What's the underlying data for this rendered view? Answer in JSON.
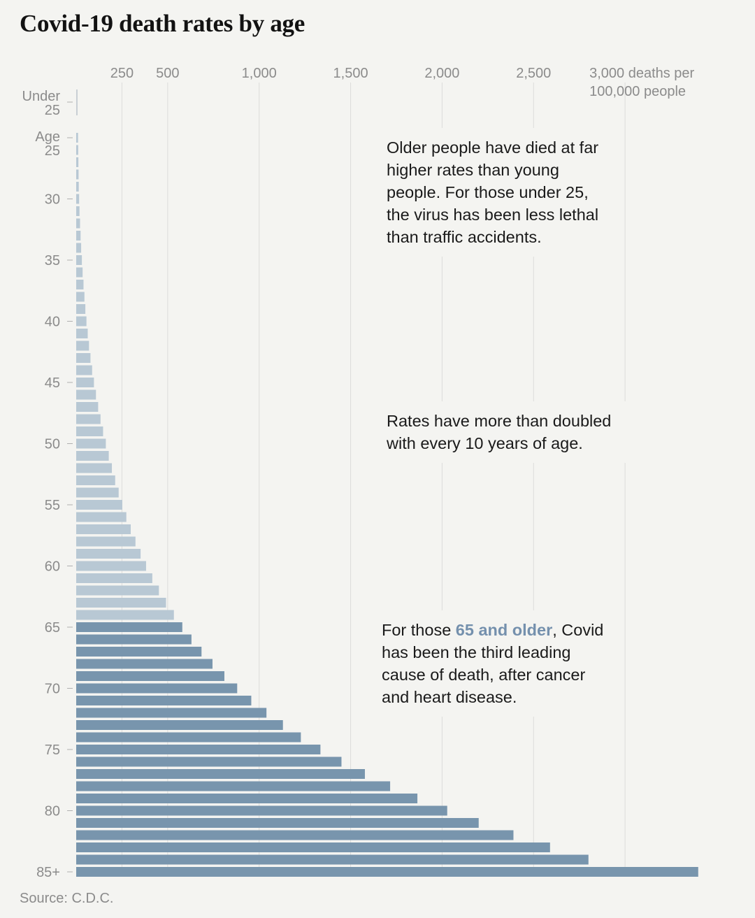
{
  "title": "Covid-19 death rates by age",
  "source": "Source: C.D.C.",
  "annotations": {
    "first": "Older people have died at far higher rates than young people. For those under 25, the virus has been less lethal than traffic accidents.",
    "second": "Rates have more than doubled with every 10 years of age.",
    "third_prefix": "For those ",
    "third_highlight": "65 and older",
    "third_suffix": ", Covid has been the third leading cause of death, after cancer and heart disease."
  },
  "colors": {
    "young": "#b8c8d4",
    "old": "#7895ad",
    "highlight": "#7490ad",
    "grid": "#dcdcda",
    "text": "#8b8b8b"
  },
  "chart_data": {
    "type": "bar",
    "orientation": "horizontal",
    "title": "Covid-19 death rates by age",
    "xlabel": "deaths per 100,000 people",
    "xlim": [
      0,
      3300
    ],
    "ticks": [
      {
        "value": 250,
        "label": "250"
      },
      {
        "value": 500,
        "label": "500"
      },
      {
        "value": 1000,
        "label": "1,000"
      },
      {
        "value": 1500,
        "label": "1,500"
      },
      {
        "value": 2000,
        "label": "2,000"
      },
      {
        "value": 2500,
        "label": "2,500"
      },
      {
        "value": 3000,
        "label": "3,000 deaths per",
        "label2": "100,000 people"
      }
    ],
    "under25": {
      "label1": "Under",
      "label2": "25",
      "value": 2
    },
    "age_header": "Age",
    "categories": [
      "25",
      "26",
      "27",
      "28",
      "29",
      "30",
      "31",
      "32",
      "33",
      "34",
      "35",
      "36",
      "37",
      "38",
      "39",
      "40",
      "41",
      "42",
      "43",
      "44",
      "45",
      "46",
      "47",
      "48",
      "49",
      "50",
      "51",
      "52",
      "53",
      "54",
      "55",
      "56",
      "57",
      "58",
      "59",
      "60",
      "61",
      "62",
      "63",
      "64",
      "65",
      "66",
      "67",
      "68",
      "69",
      "70",
      "71",
      "72",
      "73",
      "74",
      "75",
      "76",
      "77",
      "78",
      "79",
      "80",
      "81",
      "82",
      "83",
      "84",
      "85+"
    ],
    "values": [
      10,
      11,
      12,
      13,
      14,
      16,
      18,
      21,
      24,
      27,
      31,
      35,
      40,
      45,
      50,
      56,
      63,
      70,
      78,
      87,
      97,
      108,
      120,
      133,
      147,
      162,
      178,
      195,
      213,
      232,
      252,
      274,
      298,
      324,
      352,
      382,
      416,
      452,
      491,
      534,
      580,
      630,
      685,
      745,
      810,
      880,
      957,
      1040,
      1130,
      1228,
      1335,
      1450,
      1578,
      1716,
      1865,
      2028,
      2200,
      2390,
      2590,
      2800,
      3400
    ],
    "age_ticks": [
      "25",
      "30",
      "35",
      "40",
      "45",
      "50",
      "55",
      "60",
      "65",
      "70",
      "75",
      "80",
      "85+"
    ],
    "highlight_from": "65"
  }
}
